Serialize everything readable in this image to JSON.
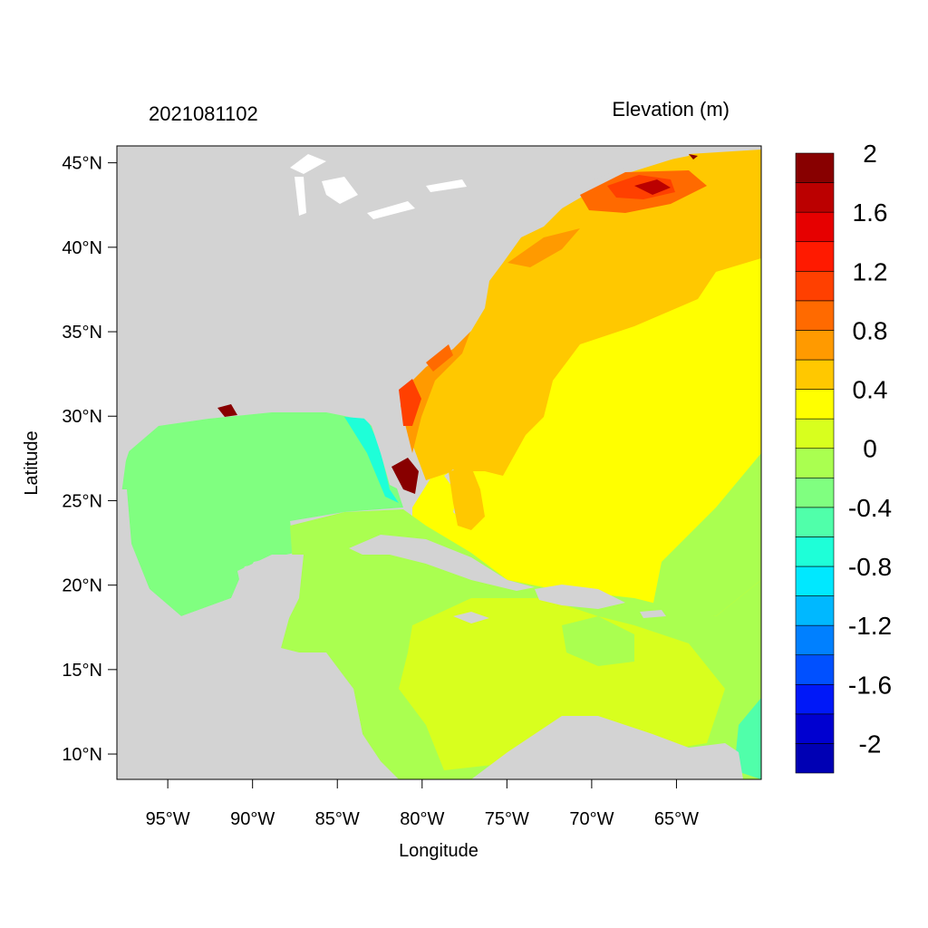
{
  "map": {
    "left_title": "2021081102",
    "right_title": "Elevation (m)",
    "x_axis_label": "Longitude",
    "y_axis_label": "Latitude",
    "x_ticks": [
      {
        "value": -95,
        "label": "95°W"
      },
      {
        "value": -90,
        "label": "90°W"
      },
      {
        "value": -85,
        "label": "85°W"
      },
      {
        "value": -80,
        "label": "80°W"
      },
      {
        "value": -75,
        "label": "75°W"
      },
      {
        "value": -70,
        "label": "70°W"
      },
      {
        "value": -65,
        "label": "65°W"
      }
    ],
    "y_ticks": [
      {
        "value": 45,
        "label": "45°N"
      },
      {
        "value": 40,
        "label": "40°N"
      },
      {
        "value": 35,
        "label": "35°N"
      },
      {
        "value": 30,
        "label": "30°N"
      },
      {
        "value": 25,
        "label": "25°N"
      },
      {
        "value": 20,
        "label": "20°N"
      },
      {
        "value": 15,
        "label": "15°N"
      },
      {
        "value": 10,
        "label": "10°N"
      }
    ],
    "lon_range": [
      -98,
      -60
    ],
    "lat_range": [
      8.5,
      46
    ],
    "land_color": "#d3d3d3"
  },
  "colorbar": {
    "colors": [
      "#0000b4",
      "#0000d0",
      "#0018f8",
      "#0050ff",
      "#0080ff",
      "#00b8ff",
      "#00e8ff",
      "#1effd8",
      "#50ffaa",
      "#80ff80",
      "#aaff50",
      "#d8ff1e",
      "#ffff00",
      "#ffc800",
      "#ff9a00",
      "#ff6a00",
      "#ff4000",
      "#ff1a00",
      "#e60000",
      "#bb0000",
      "#880000"
    ],
    "labels": [
      "-2",
      "-1.6",
      "-1.2",
      "-0.8",
      "-0.4",
      "0",
      "0.4",
      "0.8",
      "1.2",
      "1.6",
      "2"
    ]
  }
}
